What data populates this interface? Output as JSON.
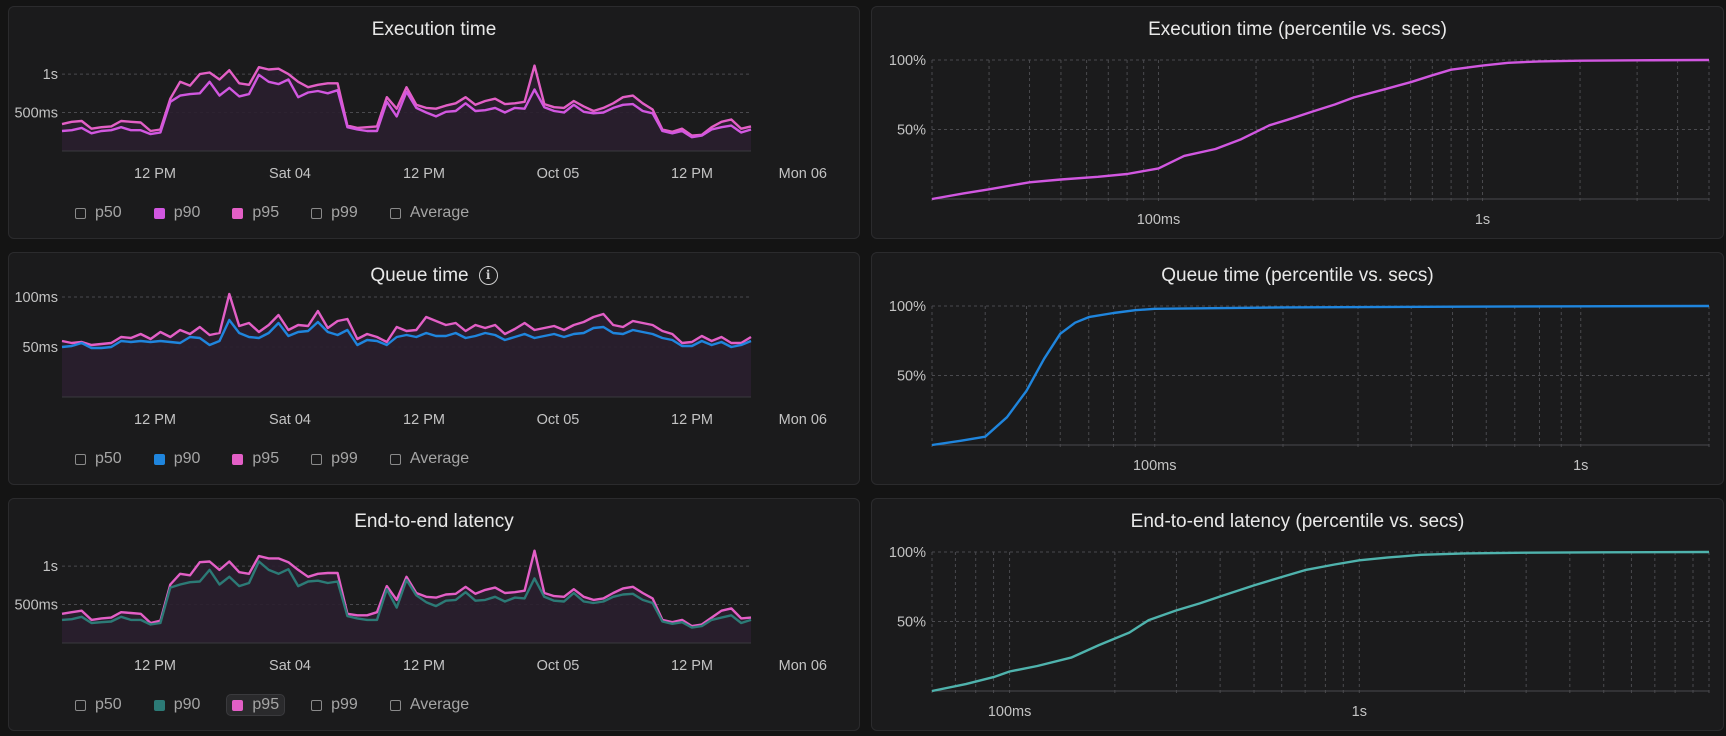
{
  "colors": {
    "exec": "#d157e0",
    "p95": "#e35fc6",
    "queue_blue": "#1f85dd",
    "e2e_teal": "#2c7a76",
    "cdf_teal": "#4fb3ad",
    "fill": "#2a1f2f",
    "grid": "#4a4a4e"
  },
  "panels": [
    {
      "id": "execution-time",
      "title": "Execution time",
      "legend": [
        {
          "label": "p50",
          "checked": false,
          "color": ""
        },
        {
          "label": "p90",
          "checked": true,
          "color": "#d157e0"
        },
        {
          "label": "p95",
          "checked": true,
          "color": "#e35fc6"
        },
        {
          "label": "p99",
          "checked": false,
          "color": ""
        },
        {
          "label": "Average",
          "checked": false,
          "color": ""
        }
      ]
    },
    {
      "id": "queue-time",
      "title": "Queue time",
      "info_icon": "info-circle-icon",
      "legend": [
        {
          "label": "p50",
          "checked": false,
          "color": ""
        },
        {
          "label": "p90",
          "checked": true,
          "color": "#1f85dd"
        },
        {
          "label": "p95",
          "checked": true,
          "color": "#e35fc6"
        },
        {
          "label": "p99",
          "checked": false,
          "color": ""
        },
        {
          "label": "Average",
          "checked": false,
          "color": ""
        }
      ]
    },
    {
      "id": "end-to-end-latency",
      "title": "End-to-end latency",
      "legend": [
        {
          "label": "p50",
          "checked": false,
          "color": ""
        },
        {
          "label": "p90",
          "checked": true,
          "color": "#2c7a76"
        },
        {
          "label": "p95",
          "checked": true,
          "color": "#e35fc6",
          "highlighted": true
        },
        {
          "label": "p99",
          "checked": false,
          "color": ""
        },
        {
          "label": "Average",
          "checked": false,
          "color": ""
        }
      ]
    },
    {
      "id": "execution-time-cdf",
      "title": "Execution time (percentile vs. secs)"
    },
    {
      "id": "queue-time-cdf",
      "title": "Queue time (percentile vs. secs)"
    },
    {
      "id": "end-to-end-latency-cdf",
      "title": "End-to-end latency (percentile vs. secs)"
    }
  ],
  "chart_data": [
    {
      "type": "area",
      "title": "Execution time",
      "x_tick_labels": [
        "12 PM",
        "Sat 04",
        "12 PM",
        "Oct 05",
        "12 PM",
        "Mon 06"
      ],
      "y_tick_labels": [
        "1s",
        "500ms"
      ],
      "y_unit": "ms",
      "ylim": [
        0,
        1300
      ],
      "y_ticks": [
        1000,
        500
      ],
      "series": [
        {
          "name": "p95",
          "color": "#e35fc6",
          "values": [
            350,
            380,
            390,
            290,
            310,
            320,
            390,
            380,
            370,
            260,
            280,
            680,
            900,
            850,
            1000,
            1020,
            930,
            1050,
            880,
            860,
            1090,
            1060,
            1070,
            1000,
            900,
            830,
            860,
            880,
            880,
            330,
            300,
            310,
            320,
            700,
            550,
            830,
            600,
            560,
            550,
            590,
            620,
            700,
            600,
            650,
            680,
            610,
            620,
            640,
            1110,
            610,
            570,
            560,
            650,
            580,
            520,
            560,
            620,
            700,
            720,
            620,
            540,
            280,
            250,
            290,
            200,
            210,
            310,
            380,
            410,
            290,
            320
          ]
        },
        {
          "name": "p90",
          "color": "#d157e0",
          "values": [
            260,
            270,
            300,
            230,
            260,
            270,
            310,
            270,
            270,
            220,
            240,
            640,
            720,
            740,
            750,
            900,
            720,
            820,
            710,
            740,
            990,
            900,
            870,
            930,
            700,
            760,
            780,
            750,
            790,
            310,
            280,
            260,
            260,
            640,
            450,
            770,
            560,
            500,
            450,
            510,
            520,
            620,
            520,
            530,
            560,
            500,
            560,
            550,
            800,
            570,
            520,
            500,
            600,
            510,
            490,
            500,
            560,
            600,
            610,
            520,
            490,
            260,
            230,
            260,
            180,
            200,
            280,
            310,
            330,
            240,
            280
          ]
        }
      ]
    },
    {
      "type": "area",
      "title": "Queue time",
      "x_tick_labels": [
        "12 PM",
        "Sat 04",
        "12 PM",
        "Oct 05",
        "12 PM",
        "Mon 06"
      ],
      "y_tick_labels": [
        "100ms",
        "50ms"
      ],
      "y_unit": "ms",
      "ylim": [
        0,
        100
      ],
      "y_ticks": [
        100,
        50
      ],
      "series": [
        {
          "name": "p95",
          "color": "#e35fc6",
          "values": [
            56,
            54,
            55,
            52,
            53,
            54,
            60,
            59,
            63,
            58,
            65,
            60,
            67,
            63,
            70,
            62,
            64,
            103,
            71,
            74,
            65,
            72,
            82,
            67,
            72,
            71,
            86,
            69,
            76,
            78,
            58,
            63,
            60,
            55,
            70,
            66,
            67,
            80,
            76,
            72,
            74,
            66,
            72,
            69,
            72,
            63,
            68,
            74,
            67,
            69,
            71,
            67,
            72,
            75,
            80,
            83,
            72,
            70,
            76,
            74,
            72,
            66,
            63,
            54,
            55,
            61,
            56,
            60,
            54,
            54,
            60
          ]
        },
        {
          "name": "p90",
          "color": "#1f85dd",
          "values": [
            50,
            51,
            54,
            49,
            49,
            50,
            56,
            55,
            56,
            55,
            56,
            55,
            54,
            60,
            59,
            52,
            56,
            77,
            64,
            60,
            59,
            64,
            74,
            61,
            65,
            66,
            75,
            65,
            62,
            67,
            52,
            57,
            56,
            52,
            60,
            62,
            60,
            64,
            61,
            61,
            64,
            59,
            61,
            64,
            62,
            57,
            60,
            63,
            59,
            61,
            63,
            60,
            63,
            64,
            69,
            70,
            64,
            63,
            67,
            65,
            63,
            59,
            57,
            51,
            51,
            56,
            52,
            55,
            50,
            52,
            56
          ]
        }
      ]
    },
    {
      "type": "area",
      "title": "End-to-end latency",
      "x_tick_labels": [
        "12 PM",
        "Sat 04",
        "12 PM",
        "Oct 05",
        "12 PM",
        "Mon 06"
      ],
      "y_tick_labels": [
        "1s",
        "500ms"
      ],
      "y_unit": "ms",
      "ylim": [
        0,
        1300
      ],
      "y_ticks": [
        1000,
        500
      ],
      "series": [
        {
          "name": "p95",
          "color": "#e35fc6",
          "values": [
            380,
            400,
            420,
            300,
            320,
            330,
            400,
            390,
            380,
            260,
            290,
            760,
            900,
            880,
            1050,
            1060,
            950,
            1060,
            920,
            900,
            1130,
            1100,
            1100,
            1050,
            950,
            860,
            900,
            910,
            910,
            380,
            360,
            360,
            400,
            740,
            560,
            860,
            650,
            600,
            590,
            630,
            640,
            730,
            640,
            690,
            720,
            650,
            660,
            680,
            1200,
            650,
            610,
            600,
            700,
            600,
            560,
            580,
            650,
            710,
            730,
            650,
            580,
            300,
            270,
            300,
            220,
            240,
            330,
            420,
            450,
            320,
            330
          ]
        },
        {
          "name": "p90",
          "color": "#2c7a76",
          "values": [
            300,
            310,
            340,
            260,
            270,
            280,
            340,
            300,
            300,
            240,
            260,
            720,
            760,
            790,
            800,
            950,
            760,
            860,
            740,
            780,
            1060,
            950,
            900,
            960,
            740,
            800,
            810,
            780,
            800,
            350,
            320,
            300,
            300,
            700,
            460,
            820,
            620,
            530,
            480,
            550,
            560,
            660,
            550,
            560,
            600,
            540,
            590,
            580,
            840,
            600,
            550,
            540,
            650,
            540,
            520,
            540,
            600,
            630,
            640,
            560,
            520,
            280,
            250,
            270,
            200,
            220,
            300,
            330,
            360,
            260,
            300
          ]
        }
      ]
    },
    {
      "type": "line",
      "title": "Execution time (percentile vs. secs)",
      "x_scale": "log",
      "x_unit": "s",
      "xlim": [
        0.02,
        5
      ],
      "x_tick_labels": [
        "100ms",
        "1s"
      ],
      "x_ticks": [
        0.1,
        1
      ],
      "y_tick_labels": [
        "100%",
        "50%"
      ],
      "y_ticks": [
        100,
        50
      ],
      "ylim": [
        0,
        100
      ],
      "series": [
        {
          "name": "percentile",
          "color": "#d157e0",
          "x": [
            0.02,
            0.025,
            0.03,
            0.04,
            0.05,
            0.065,
            0.08,
            0.1,
            0.12,
            0.15,
            0.18,
            0.22,
            0.25,
            0.3,
            0.35,
            0.4,
            0.5,
            0.6,
            0.7,
            0.8,
            1.0,
            1.2,
            1.5,
            2.0,
            3.0,
            5.0
          ],
          "y": [
            0,
            4,
            7,
            12,
            14,
            16,
            18,
            22,
            31,
            36,
            43,
            53,
            57,
            63,
            68,
            73,
            79,
            84,
            89,
            93,
            96,
            98,
            99,
            99.5,
            99.8,
            100
          ]
        }
      ]
    },
    {
      "type": "line",
      "title": "Queue time (percentile vs. secs)",
      "x_scale": "log",
      "x_unit": "s",
      "xlim": [
        0.03,
        2
      ],
      "x_tick_labels": [
        "100ms",
        "1s"
      ],
      "x_ticks": [
        0.1,
        1
      ],
      "y_tick_labels": [
        "100%",
        "50%"
      ],
      "y_ticks": [
        100,
        50
      ],
      "ylim": [
        0,
        100
      ],
      "series": [
        {
          "name": "percentile",
          "color": "#1f85dd",
          "x": [
            0.03,
            0.035,
            0.04,
            0.045,
            0.05,
            0.055,
            0.06,
            0.065,
            0.07,
            0.08,
            0.09,
            0.1,
            0.2,
            0.5,
            1.0,
            2.0
          ],
          "y": [
            0,
            3,
            6,
            20,
            39,
            62,
            80,
            88,
            92,
            95,
            97,
            98,
            99,
            99.5,
            99.8,
            100
          ]
        }
      ]
    },
    {
      "type": "line",
      "title": "End-to-end latency (percentile vs. secs)",
      "x_scale": "log",
      "x_unit": "s",
      "xlim": [
        0.06,
        10
      ],
      "x_tick_labels": [
        "100ms",
        "1s"
      ],
      "x_ticks": [
        0.1,
        1
      ],
      "y_tick_labels": [
        "100%",
        "50%"
      ],
      "y_ticks": [
        100,
        50
      ],
      "ylim": [
        0,
        100
      ],
      "series": [
        {
          "name": "percentile",
          "color": "#4fb3ad",
          "x": [
            0.06,
            0.075,
            0.09,
            0.1,
            0.12,
            0.15,
            0.18,
            0.22,
            0.25,
            0.3,
            0.35,
            0.4,
            0.5,
            0.6,
            0.7,
            0.85,
            1.0,
            1.2,
            1.5,
            2.0,
            3.0,
            5.0,
            10.0
          ],
          "y": [
            0,
            5,
            10,
            14,
            18,
            24,
            33,
            42,
            51,
            58,
            63,
            68,
            76,
            82,
            87,
            91,
            94,
            96,
            98,
            99,
            99.5,
            99.8,
            100
          ]
        }
      ]
    }
  ]
}
